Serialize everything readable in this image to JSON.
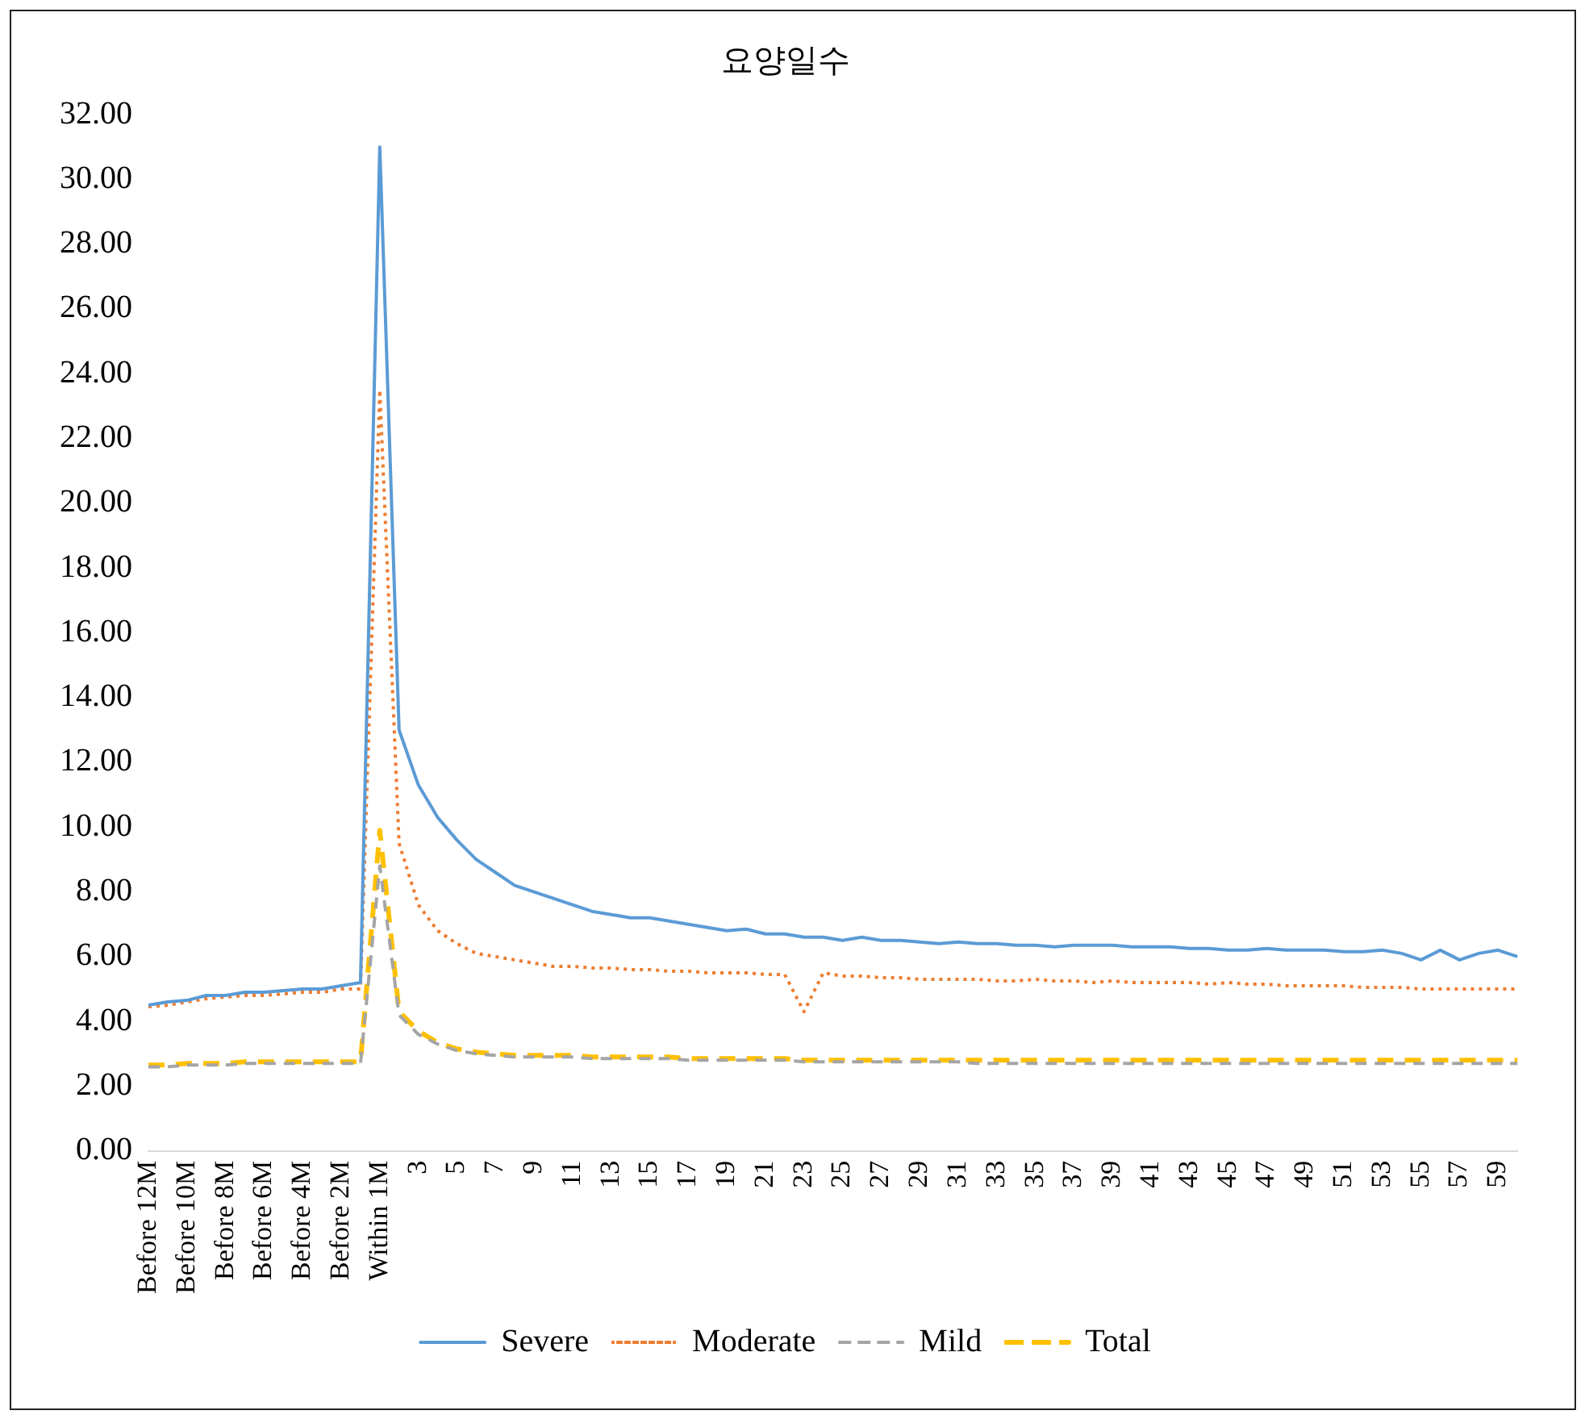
{
  "chart_data": {
    "type": "line",
    "title": "요양일수",
    "categories": [
      "Before 12M",
      null,
      "Before 10M",
      null,
      "Before 8M",
      null,
      "Before 6M",
      null,
      "Before 4M",
      null,
      "Before 2M",
      null,
      "Within 1M",
      null,
      "3",
      null,
      "5",
      null,
      "7",
      null,
      "9",
      null,
      "11",
      null,
      "13",
      null,
      "15",
      null,
      "17",
      null,
      "19",
      null,
      "21",
      null,
      "23",
      null,
      "25",
      null,
      "27",
      null,
      "29",
      null,
      "31",
      null,
      "33",
      null,
      "35",
      null,
      "37",
      null,
      "39",
      null,
      "41",
      null,
      "43",
      null,
      "45",
      null,
      "47",
      null,
      "49",
      null,
      "51",
      null,
      "53",
      null,
      "55",
      null,
      "57",
      null,
      "59",
      null
    ],
    "series": [
      {
        "name": "Severe",
        "color": "#5b9bd5",
        "line_style": "solid",
        "values": [
          4.5,
          4.6,
          4.65,
          4.8,
          4.8,
          4.9,
          4.9,
          4.95,
          5.0,
          5.0,
          5.1,
          5.2,
          31.0,
          13.0,
          11.3,
          10.3,
          9.6,
          9.0,
          8.6,
          8.2,
          8.0,
          7.8,
          7.6,
          7.4,
          7.3,
          7.2,
          7.2,
          7.1,
          7.0,
          6.9,
          6.8,
          6.85,
          6.7,
          6.7,
          6.6,
          6.6,
          6.5,
          6.6,
          6.5,
          6.5,
          6.45,
          6.4,
          6.45,
          6.4,
          6.4,
          6.35,
          6.35,
          6.3,
          6.35,
          6.35,
          6.35,
          6.3,
          6.3,
          6.3,
          6.25,
          6.25,
          6.2,
          6.2,
          6.25,
          6.2,
          6.2,
          6.2,
          6.15,
          6.15,
          6.2,
          6.1,
          5.9,
          6.2,
          5.9,
          6.1,
          6.2,
          6.0
        ]
      },
      {
        "name": "Moderate",
        "color": "#ed7d31",
        "line_style": "dotted",
        "values": [
          4.45,
          4.5,
          4.6,
          4.7,
          4.75,
          4.8,
          4.8,
          4.85,
          4.9,
          4.9,
          5.0,
          5.0,
          23.5,
          9.5,
          7.6,
          6.8,
          6.4,
          6.1,
          6.0,
          5.9,
          5.8,
          5.7,
          5.7,
          5.65,
          5.65,
          5.6,
          5.6,
          5.55,
          5.55,
          5.5,
          5.5,
          5.5,
          5.45,
          5.45,
          4.3,
          5.5,
          5.4,
          5.4,
          5.35,
          5.35,
          5.3,
          5.3,
          5.3,
          5.3,
          5.25,
          5.25,
          5.3,
          5.25,
          5.25,
          5.2,
          5.25,
          5.2,
          5.2,
          5.2,
          5.2,
          5.15,
          5.2,
          5.15,
          5.15,
          5.1,
          5.1,
          5.1,
          5.1,
          5.05,
          5.05,
          5.05,
          5.0,
          5.0,
          5.0,
          5.0,
          5.0,
          5.0
        ]
      },
      {
        "name": "Mild",
        "color": "#a5a5a5",
        "line_style": "dashed",
        "values": [
          2.6,
          2.6,
          2.65,
          2.65,
          2.65,
          2.7,
          2.7,
          2.7,
          2.7,
          2.7,
          2.7,
          2.7,
          8.8,
          4.2,
          3.6,
          3.3,
          3.1,
          3.0,
          2.95,
          2.9,
          2.9,
          2.9,
          2.9,
          2.85,
          2.85,
          2.85,
          2.85,
          2.85,
          2.8,
          2.8,
          2.8,
          2.8,
          2.8,
          2.8,
          2.75,
          2.75,
          2.75,
          2.75,
          2.75,
          2.75,
          2.75,
          2.75,
          2.75,
          2.7,
          2.7,
          2.7,
          2.7,
          2.7,
          2.7,
          2.7,
          2.7,
          2.7,
          2.7,
          2.7,
          2.7,
          2.7,
          2.7,
          2.7,
          2.7,
          2.7,
          2.7,
          2.7,
          2.7,
          2.7,
          2.7,
          2.7,
          2.7,
          2.7,
          2.7,
          2.7,
          2.7,
          2.7
        ]
      },
      {
        "name": "Total",
        "color": "#ffc000",
        "line_style": "dashed",
        "values": [
          2.65,
          2.65,
          2.7,
          2.7,
          2.7,
          2.75,
          2.75,
          2.75,
          2.75,
          2.75,
          2.75,
          2.75,
          9.9,
          4.3,
          3.7,
          3.35,
          3.15,
          3.05,
          3.0,
          2.95,
          2.95,
          2.95,
          2.95,
          2.9,
          2.9,
          2.9,
          2.9,
          2.9,
          2.85,
          2.85,
          2.85,
          2.85,
          2.85,
          2.85,
          2.8,
          2.8,
          2.8,
          2.8,
          2.8,
          2.8,
          2.8,
          2.8,
          2.8,
          2.8,
          2.8,
          2.8,
          2.8,
          2.8,
          2.8,
          2.8,
          2.8,
          2.8,
          2.8,
          2.8,
          2.8,
          2.8,
          2.8,
          2.8,
          2.8,
          2.8,
          2.8,
          2.8,
          2.8,
          2.8,
          2.8,
          2.8,
          2.8,
          2.8,
          2.8,
          2.8,
          2.8,
          2.8
        ]
      }
    ],
    "ylim": [
      0,
      32
    ],
    "yticks": [
      {
        "value": 0,
        "label": "0.00"
      },
      {
        "value": 2,
        "label": "2.00"
      },
      {
        "value": 4,
        "label": "4.00"
      },
      {
        "value": 6,
        "label": "6.00"
      },
      {
        "value": 8,
        "label": "8.00"
      },
      {
        "value": 10,
        "label": "10.00"
      },
      {
        "value": 12,
        "label": "12.00"
      },
      {
        "value": 14,
        "label": "14.00"
      },
      {
        "value": 16,
        "label": "16.00"
      },
      {
        "value": 18,
        "label": "18.00"
      },
      {
        "value": 20,
        "label": "20.00"
      },
      {
        "value": 22,
        "label": "22.00"
      },
      {
        "value": 24,
        "label": "24.00"
      },
      {
        "value": 26,
        "label": "26.00"
      },
      {
        "value": 28,
        "label": "28.00"
      },
      {
        "value": 30,
        "label": "30.00"
      },
      {
        "value": 32,
        "label": "32.00"
      }
    ],
    "grid": false,
    "legend": "bottom",
    "marker": "none"
  }
}
